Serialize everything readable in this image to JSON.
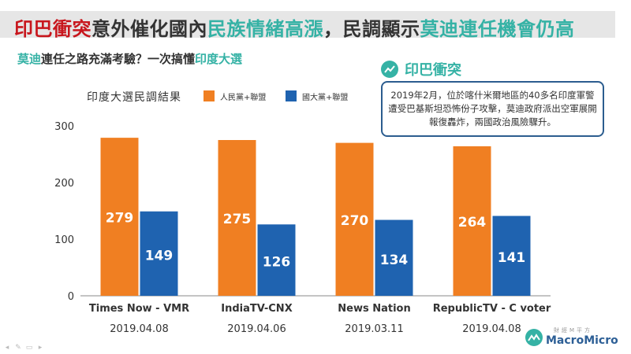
{
  "header": {
    "title_parts": [
      {
        "text": "印巴衝突",
        "color": "red"
      },
      {
        "text": "意外催化國內",
        "color": "dark"
      },
      {
        "text": "民族情緒高漲",
        "color": "teal"
      },
      {
        "text": "，民調顯示",
        "color": "dark"
      },
      {
        "text": "莫迪連任機會仍高",
        "color": "teal"
      }
    ],
    "subtitle_parts": [
      {
        "text": "莫迪",
        "color": "teal"
      },
      {
        "text": "連任之路充滿考驗？一次搞懂",
        "color": "dark"
      },
      {
        "text": "印度大選",
        "color": "teal"
      }
    ]
  },
  "info": {
    "heading": "印巴衝突",
    "heading_icon": "chart-circle-icon",
    "body": "2019年2月，位於喀什米爾地區的40多名印度軍警遭受巴基斯坦恐怖份子攻擊，莫迪政府派出空軍展開報復轟炸，兩國政治風險驟升。"
  },
  "chart_data": {
    "type": "bar",
    "title": "印度大選民調結果",
    "categories": [
      "Times Now - VMR",
      "IndiaTV-CNX",
      "News Nation",
      "RepublicTV - C voter"
    ],
    "dates": [
      "2019.04.08",
      "2019.04.06",
      "2019.03.11",
      "2019.04.08"
    ],
    "series": [
      {
        "name": "人民黨+聯盟",
        "color": "#f07f22",
        "values": [
          279,
          275,
          270,
          264
        ]
      },
      {
        "name": "國大黨+聯盟",
        "color": "#1f63b0",
        "values": [
          149,
          126,
          134,
          141
        ]
      }
    ],
    "y_ticks": [
      0,
      100,
      200,
      300
    ],
    "ylim": [
      0,
      300
    ],
    "grid": false,
    "legend": "top"
  },
  "brand": {
    "small": "財經M平方",
    "main": "MacroMicro",
    "icon": "macromicro-logo-icon"
  },
  "colors": {
    "red": "#c8161d",
    "teal": "#35b2a5",
    "dark": "#333333",
    "info_border": "#2c5d8f"
  },
  "toolbar": {
    "icons": [
      "arrow-icon",
      "pen-icon",
      "slide-icon",
      "more-icon"
    ],
    "glyphs": [
      "◂",
      "✎",
      "▭",
      "▸"
    ]
  }
}
